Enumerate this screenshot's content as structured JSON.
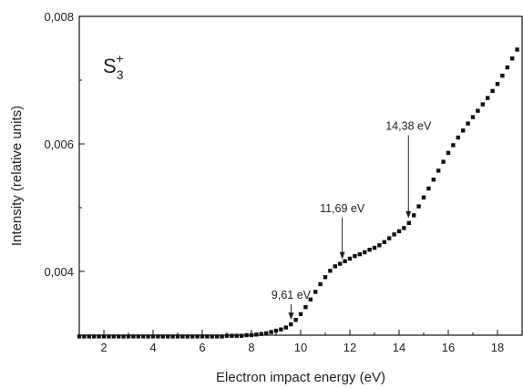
{
  "chart_data": {
    "type": "scatter",
    "xlabel": "Electron impact energy (eV)",
    "ylabel": "Intensity (relative units)",
    "xlim": [
      1,
      19
    ],
    "ylim": [
      0.003,
      0.008
    ],
    "x_ticks": [
      2,
      4,
      6,
      8,
      10,
      12,
      14,
      16,
      18
    ],
    "x_tick_labels": [
      "2",
      "4",
      "6",
      "8",
      "10",
      "12",
      "14",
      "16",
      "18"
    ],
    "y_ticks": [
      0.004,
      0.006,
      0.008
    ],
    "y_tick_labels": [
      "0,004",
      "0,006",
      "0,008"
    ],
    "grid": false,
    "legend": "none",
    "marker": "square",
    "marker_color": "#111111",
    "label": {
      "base": "S",
      "subscript": "3",
      "superscript": "+"
    },
    "annotations": [
      {
        "text": "9,61 eV",
        "x": 9.61,
        "y": 0.00317
      },
      {
        "text": "11,69 eV",
        "x": 11.69,
        "y": 0.00412
      },
      {
        "text": "14,38 eV",
        "x": 14.38,
        "y": 0.00476
      }
    ],
    "series": [
      {
        "x": [
          1.0,
          1.2,
          1.4,
          1.6,
          1.8,
          2.0,
          2.2,
          2.4,
          2.6,
          2.8,
          3.0,
          3.2,
          3.4,
          3.6,
          3.8,
          4.0,
          4.2,
          4.4,
          4.6,
          4.8,
          5.0,
          5.2,
          5.4,
          5.6,
          5.8,
          6.0,
          6.2,
          6.4,
          6.6,
          6.8,
          7.0,
          7.2,
          7.4,
          7.6,
          7.8,
          8.0,
          8.2,
          8.4,
          8.6,
          8.8,
          9.0,
          9.2,
          9.4,
          9.6,
          9.8,
          10.0,
          10.2,
          10.4,
          10.6,
          10.8,
          11.0,
          11.2,
          11.4,
          11.6,
          11.8,
          12.0,
          12.2,
          12.4,
          12.6,
          12.8,
          13.0,
          13.2,
          13.4,
          13.6,
          13.8,
          14.0,
          14.2,
          14.4,
          14.6,
          14.8,
          15.0,
          15.2,
          15.4,
          15.6,
          15.8,
          16.0,
          16.2,
          16.4,
          16.6,
          16.8,
          17.0,
          17.2,
          17.4,
          17.6,
          17.8,
          18.0,
          18.2,
          18.4,
          18.6,
          18.8
        ],
        "y": [
          0.00298,
          0.00298,
          0.00298,
          0.00298,
          0.00298,
          0.00298,
          0.00298,
          0.00298,
          0.00298,
          0.00298,
          0.00298,
          0.00298,
          0.00298,
          0.00298,
          0.00298,
          0.00298,
          0.00298,
          0.00298,
          0.00298,
          0.00298,
          0.00298,
          0.00298,
          0.00298,
          0.00298,
          0.00298,
          0.00298,
          0.00298,
          0.00298,
          0.00298,
          0.00298,
          0.00299,
          0.00299,
          0.00299,
          0.00299,
          0.003,
          0.003,
          0.00301,
          0.00302,
          0.00303,
          0.00305,
          0.00307,
          0.00309,
          0.00312,
          0.00317,
          0.00324,
          0.00333,
          0.00344,
          0.00356,
          0.00368,
          0.0038,
          0.00391,
          0.00401,
          0.00408,
          0.00412,
          0.00416,
          0.0042,
          0.00424,
          0.00427,
          0.0043,
          0.00434,
          0.00437,
          0.00441,
          0.00446,
          0.00452,
          0.00458,
          0.00463,
          0.00468,
          0.00476,
          0.00488,
          0.00502,
          0.00516,
          0.0053,
          0.00544,
          0.00558,
          0.00572,
          0.00586,
          0.00598,
          0.0061,
          0.00621,
          0.00632,
          0.00642,
          0.00652,
          0.00662,
          0.00672,
          0.00683,
          0.00694,
          0.00707,
          0.0072,
          0.00734,
          0.00748
        ]
      }
    ]
  }
}
